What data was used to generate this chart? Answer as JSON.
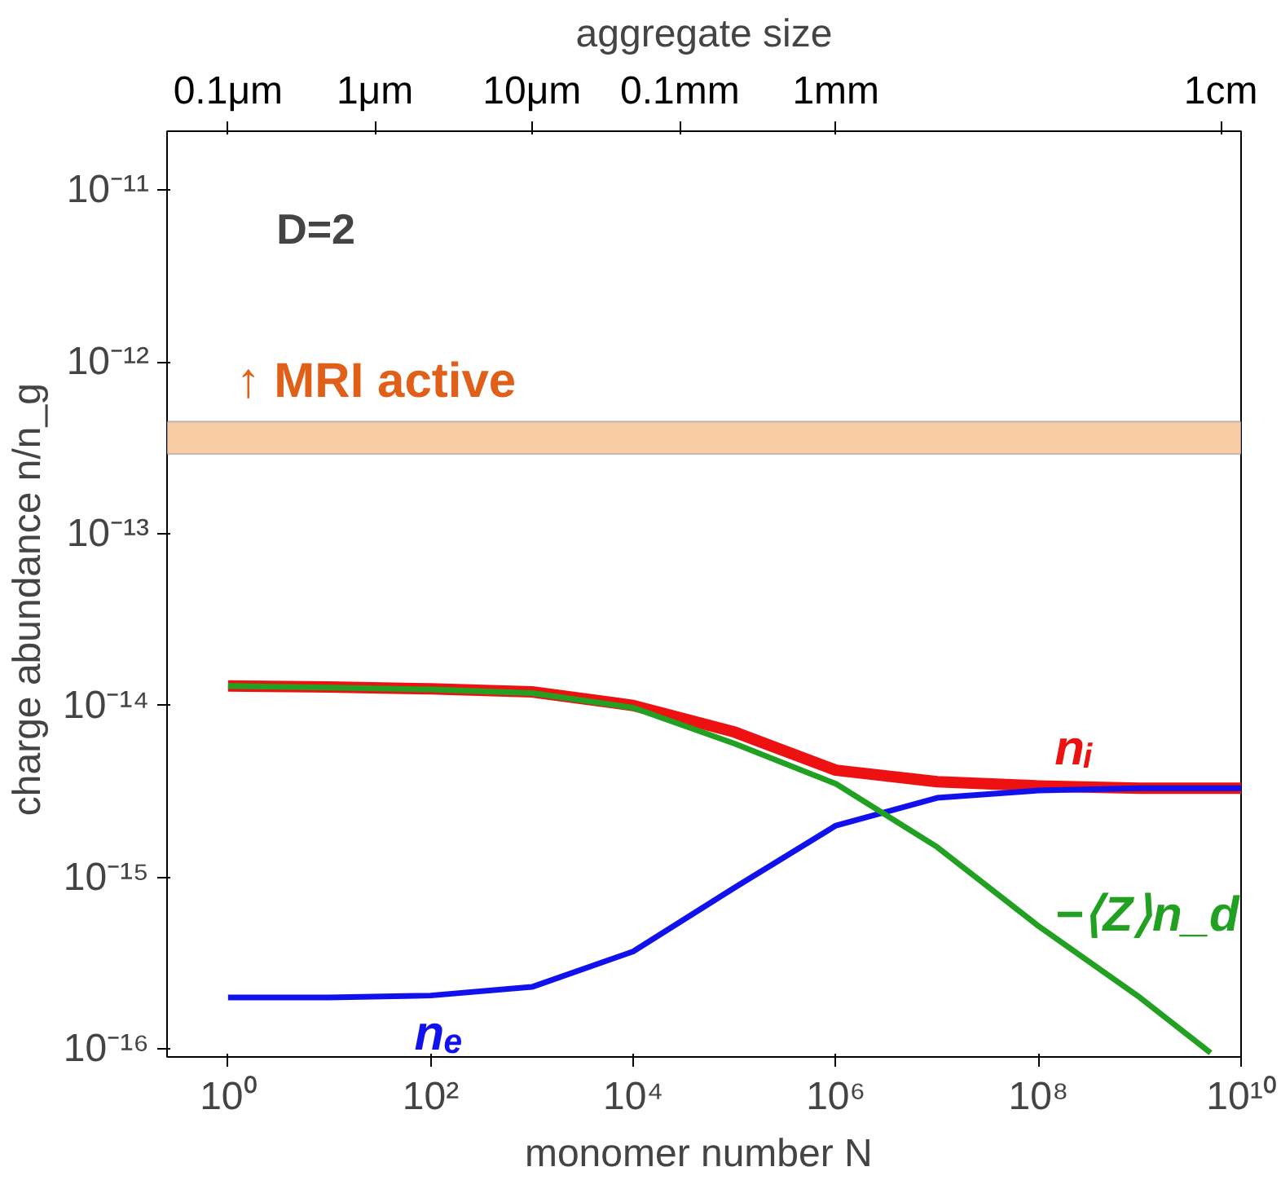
{
  "chart_data": {
    "type": "line",
    "xlabel": "monomer number  N",
    "ylabel": "charge abundance  n/n_g",
    "title": "aggregate size",
    "log": "xy",
    "grid": false,
    "marker": "none",
    "line_style": "solid",
    "xlim": [
      0.25,
      10000000000.0
    ],
    "ylim": [
      9e-17,
      2.2e-11
    ],
    "xticks": [
      {
        "value": 1,
        "label": "10⁰"
      },
      {
        "value": 100,
        "label": "10²"
      },
      {
        "value": 10000,
        "label": "10⁴"
      },
      {
        "value": 1000000,
        "label": "10⁶"
      },
      {
        "value": 100000000,
        "label": "10⁸"
      },
      {
        "value": 10000000000,
        "label": "10¹⁰"
      }
    ],
    "yticks": [
      {
        "value": 1e-16,
        "label": "10⁻¹⁶"
      },
      {
        "value": 1e-15,
        "label": "10⁻¹⁵"
      },
      {
        "value": 1e-14,
        "label": "10⁻¹⁴"
      },
      {
        "value": 1e-13,
        "label": "10⁻¹³"
      },
      {
        "value": 1e-12,
        "label": "10⁻¹²"
      },
      {
        "value": 1e-11,
        "label": "10⁻¹¹"
      }
    ],
    "series": [
      {
        "name": "nᵢ",
        "color": "#ee1111",
        "x": [
          1,
          10,
          100,
          1000,
          10000,
          100000,
          1000000,
          10000000,
          100000000,
          1000000000,
          10000000000
        ],
        "values": [
          1.3e-14,
          1.28e-14,
          1.25e-14,
          1.2e-14,
          1e-14,
          7e-15,
          4.2e-15,
          3.6e-15,
          3.4e-15,
          3.3e-15,
          3.3e-15
        ]
      },
      {
        "name": "nₑ",
        "color": "#1111ee",
        "x": [
          1,
          10,
          100,
          1000,
          10000,
          100000,
          1000000,
          10000000,
          100000000,
          1000000000,
          10000000000
        ],
        "values": [
          2e-16,
          2e-16,
          2.05e-16,
          2.3e-16,
          3.7e-16,
          8.7e-16,
          2e-15,
          2.9e-15,
          3.2e-15,
          3.3e-15,
          3.3e-15
        ]
      },
      {
        "name": "−⟨Z⟩n_d",
        "color": "#22a022",
        "x": [
          1,
          10,
          100,
          1000,
          10000,
          100000,
          1000000,
          10000000,
          100000000,
          1000000000,
          5000000000
        ],
        "values": [
          1.3e-14,
          1.27e-14,
          1.24e-14,
          1.18e-14,
          9.7e-15,
          6e-15,
          3.5e-15,
          1.5e-15,
          5.2e-16,
          2e-16,
          9.5e-17
        ]
      }
    ],
    "bands": [
      {
        "axis": "y",
        "from": 2.9e-13,
        "to": 4.5e-13,
        "label": "↑ MRI active",
        "color": "#f7c89a"
      }
    ],
    "annotations": [
      "D=2",
      "0.1μm",
      "1μm",
      "10μm",
      "0.1mm",
      "1mm",
      "1cm"
    ]
  }
}
